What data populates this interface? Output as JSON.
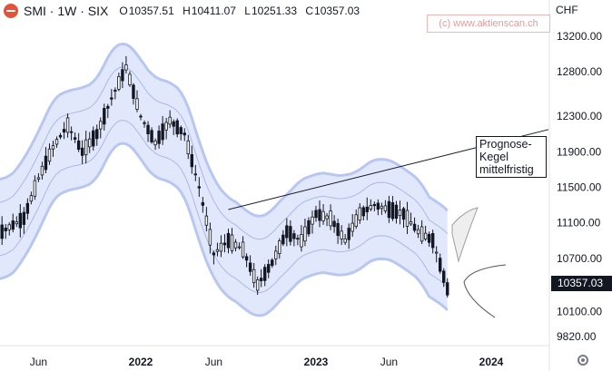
{
  "header": {
    "symbol": "SMI · 1W · SIX",
    "open_label": "O",
    "open": "10357.51",
    "high_label": "H",
    "high": "10411.07",
    "low_label": "L",
    "low": "10251.33",
    "close_label": "C",
    "close": "10357.03",
    "watermark": "(c) www.aktienscan.ch",
    "currency": "CHF"
  },
  "annotation": {
    "forecast_label_lines": [
      "Prognose-",
      "Kegel",
      "mittelfristig"
    ]
  },
  "chart_data": {
    "type": "candlestick",
    "y_ticks": [
      13200,
      12800,
      12300,
      11900,
      11500,
      11100,
      10700,
      10100,
      9820
    ],
    "y_tick_labels": [
      "13200.00",
      "12800.00",
      "12300.00",
      "11900.00",
      "11500.00",
      "11100.00",
      "10700.00",
      "10100.00",
      "9820.00"
    ],
    "x_tick_labels": [
      "Jun",
      "2022",
      "Jun",
      "2023",
      "Jun",
      "2024"
    ],
    "x_tick_dates": [
      "2021-06",
      "2022-01",
      "2022-06",
      "2023-01",
      "2023-06",
      "2024-01"
    ],
    "last_price": "10357.03",
    "last_price_value": 10357.03,
    "series_path": [
      [
        "2021-03",
        10950
      ],
      [
        "2021-04",
        11050
      ],
      [
        "2021-05",
        11150
      ],
      [
        "2021-06",
        11600
      ],
      [
        "2021-07",
        11950
      ],
      [
        "2021-08",
        12200
      ],
      [
        "2021-09",
        11900
      ],
      [
        "2021-10",
        12100
      ],
      [
        "2021-11",
        12500
      ],
      [
        "2021-12",
        12850
      ],
      [
        "2022-01",
        12300
      ],
      [
        "2022-02",
        12000
      ],
      [
        "2022-03",
        12250
      ],
      [
        "2022-04",
        12100
      ],
      [
        "2022-05",
        11500
      ],
      [
        "2022-06",
        10750
      ],
      [
        "2022-07",
        10900
      ],
      [
        "2022-08",
        10800
      ],
      [
        "2022-09",
        10400
      ],
      [
        "2022-10",
        10650
      ],
      [
        "2022-11",
        11000
      ],
      [
        "2022-12",
        10900
      ],
      [
        "2023-01",
        11200
      ],
      [
        "2023-02",
        11150
      ],
      [
        "2023-03",
        10900
      ],
      [
        "2023-04",
        11200
      ],
      [
        "2023-05",
        11300
      ],
      [
        "2023-06",
        11250
      ],
      [
        "2023-07",
        11200
      ],
      [
        "2023-08",
        11000
      ],
      [
        "2023-09",
        10900
      ],
      [
        "2023-10",
        10357
      ]
    ],
    "trend_line": {
      "from": [
        "2022-07",
        11250
      ],
      "to": [
        "2024-04",
        12150
      ]
    }
  }
}
